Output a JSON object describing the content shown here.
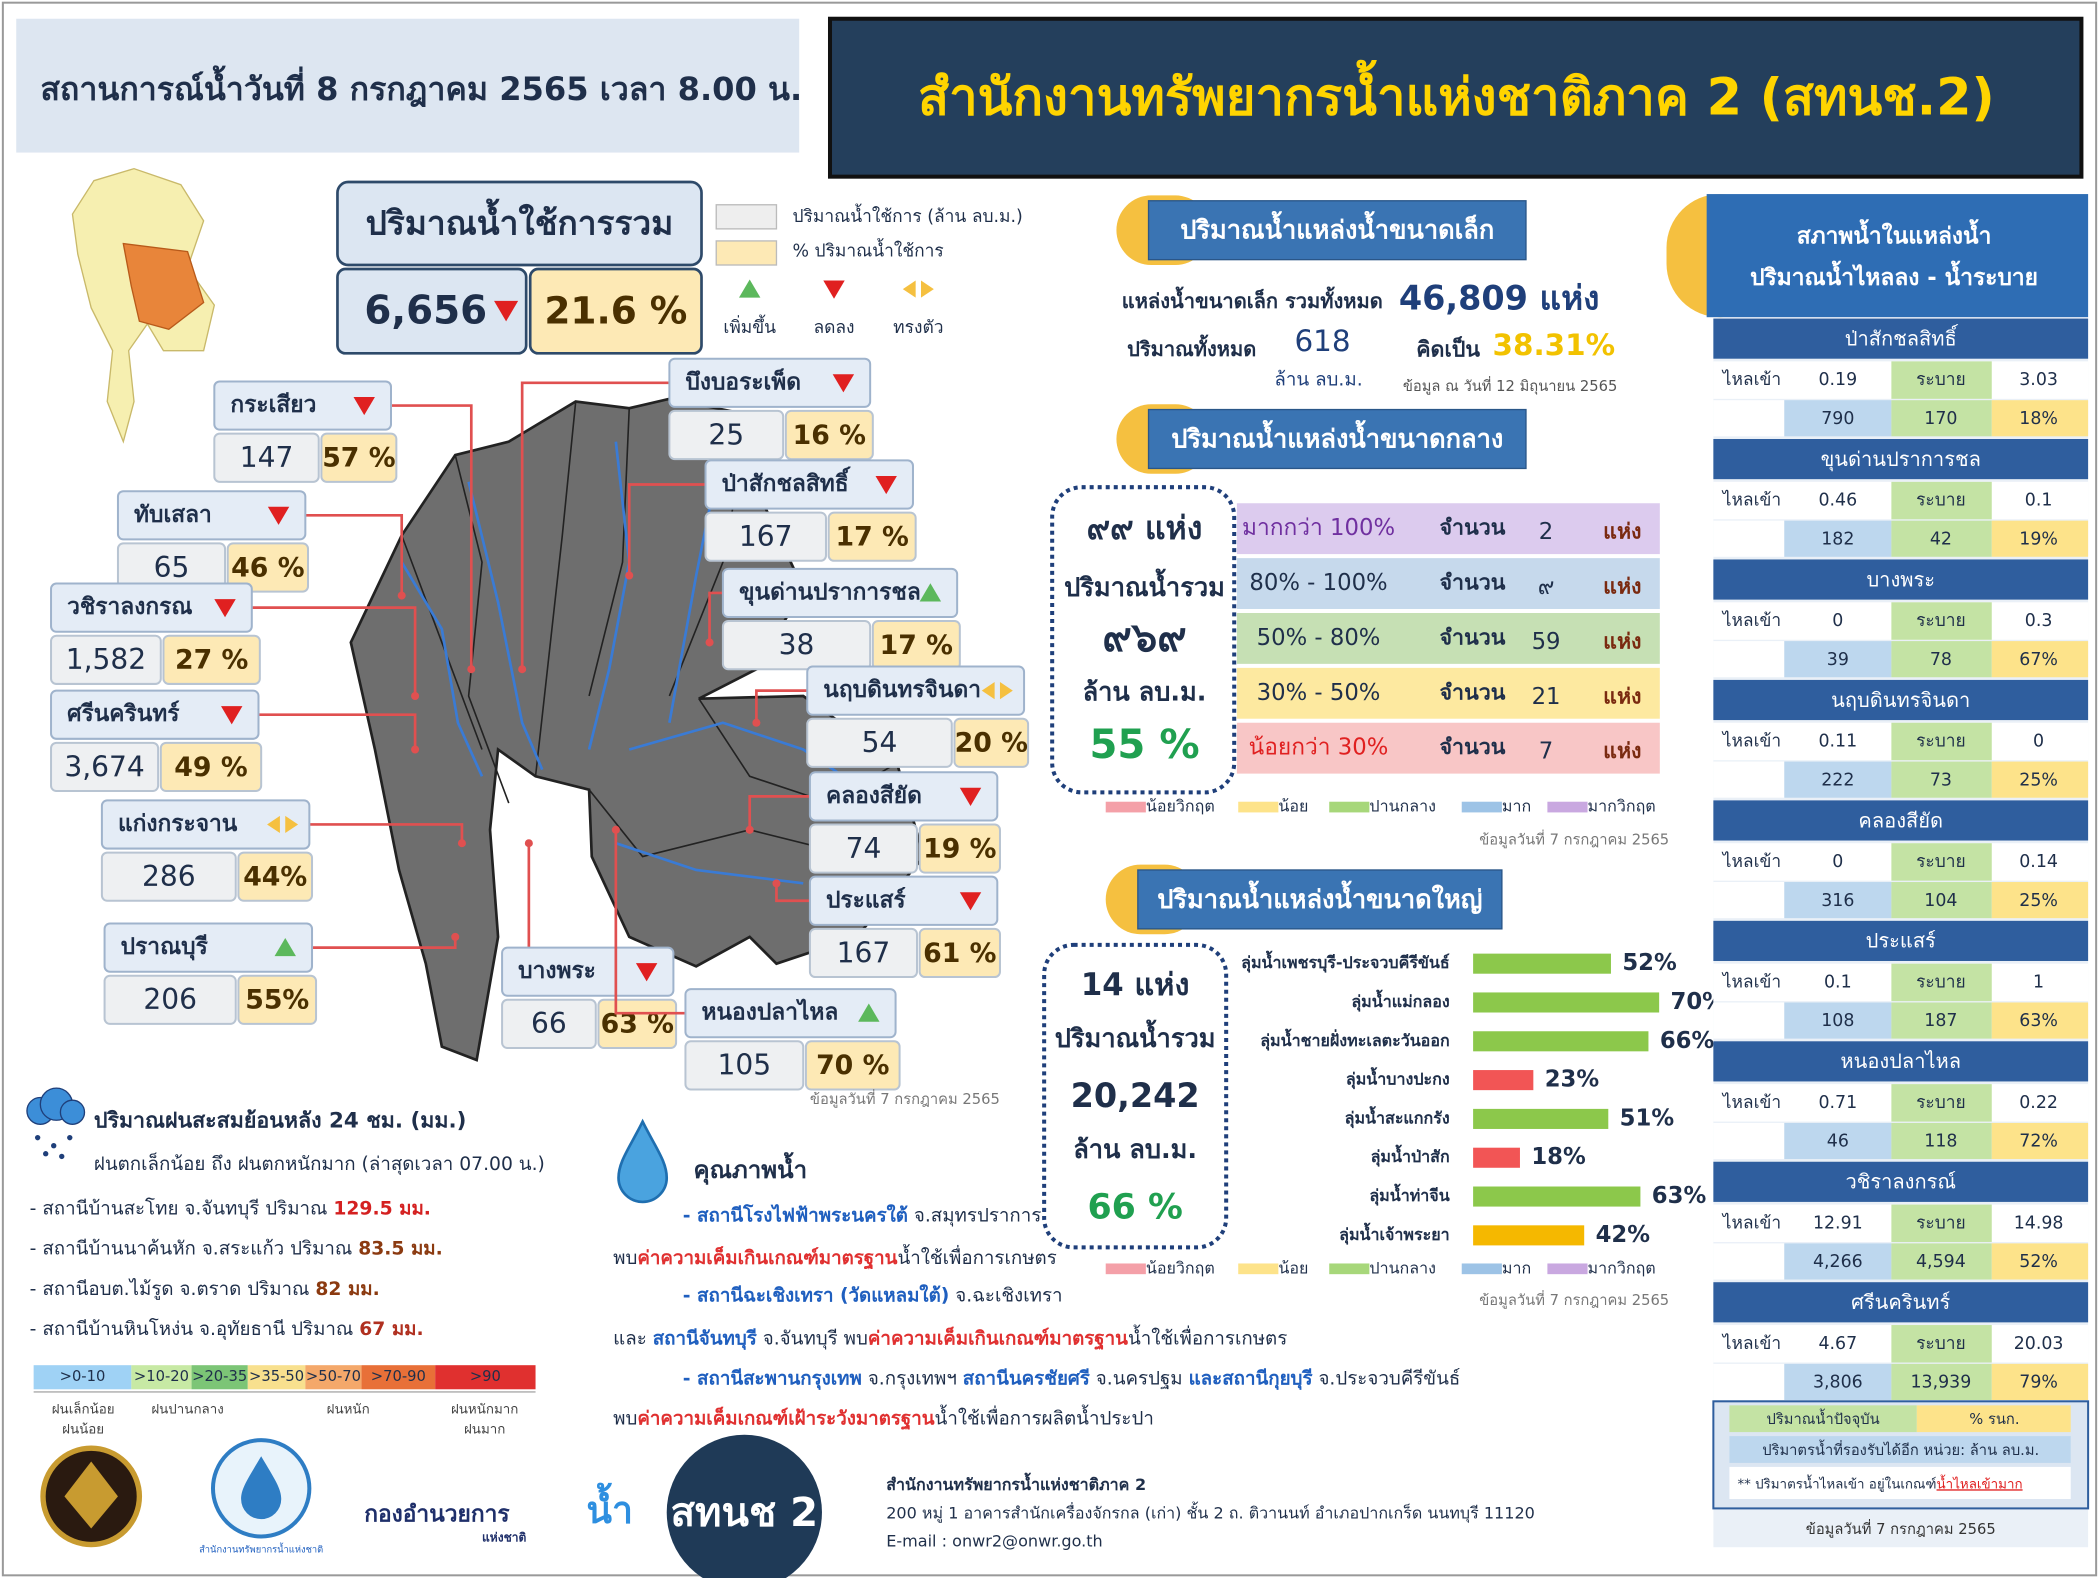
{
  "header": {
    "date_line": "สถานการณ์น้ำวันที่   8 กรกฎาคม 2565 เวลา 8.00 น.",
    "title": "สำนักงานทรัพยากรน้ำแห่งชาติภาค 2 (สทนช.2)"
  },
  "total": {
    "title": "ปริมาณน้ำใช้การรวม",
    "volume": "6,656",
    "percent": "21.6 %",
    "trend": "down"
  },
  "legend": {
    "items": [
      {
        "text": "ปริมาณน้ำใช้การ (ล้าน ลบ.ม.)",
        "color": "#eeeeee"
      },
      {
        "text": "% ปริมาณน้ำใช้การ",
        "color": "#fde9b5"
      }
    ],
    "trends": [
      {
        "text": "เพิ่มขึ้น",
        "trend": "up"
      },
      {
        "text": "ลดลง",
        "trend": "down"
      },
      {
        "text": "ทรงตัว",
        "trend": "steady"
      }
    ]
  },
  "map_reservoirs": [
    {
      "name": "กระเสียว",
      "volume": "147",
      "percent": "57 %",
      "trend": "down"
    },
    {
      "name": "ทับเสลา",
      "volume": "65",
      "percent": "46 %",
      "trend": "down"
    },
    {
      "name": "วชิราลงกรณ",
      "volume": "1,582",
      "percent": "27 %",
      "trend": "down"
    },
    {
      "name": "ศรีนครินทร์",
      "volume": "3,674",
      "percent": "49 %",
      "trend": "down"
    },
    {
      "name": "แก่งกระจาน",
      "volume": "286",
      "percent": "44%",
      "trend": "steady"
    },
    {
      "name": "ปราณบุรี",
      "volume": "206",
      "percent": "55%",
      "trend": "up"
    },
    {
      "name": "บึงบอระเพ็ด",
      "volume": "25",
      "percent": "16 %",
      "trend": "down"
    },
    {
      "name": "ป่าสักชลสิทธิ์",
      "volume": "167",
      "percent": "17 %",
      "trend": "down"
    },
    {
      "name": "ขุนด่านปราการชล",
      "volume": "38",
      "percent": "17 %",
      "trend": "up"
    },
    {
      "name": "นฤบดินทรจินดา",
      "volume": "54",
      "percent": "20 %",
      "trend": "steady"
    },
    {
      "name": "คลองสียัด",
      "volume": "74",
      "percent": "19 %",
      "trend": "down"
    },
    {
      "name": "ประแสร์",
      "volume": "167",
      "percent": "61 %",
      "trend": "down"
    },
    {
      "name": "บางพระ",
      "volume": "66",
      "percent": "63 %",
      "trend": "down"
    },
    {
      "name": "หนองปลาไหล",
      "volume": "105",
      "percent": "70 %",
      "trend": "up"
    }
  ],
  "map_source": "ข้อมูลวันที่ 7 กรกฎาคม 2565",
  "small": {
    "title": "ปริมาณน้ำแหล่งน้ำขนาดเล็ก",
    "total_label": "แหล่งน้ำขนาดเล็ก รวมทั้งหมด",
    "total": "46,809 แห่ง",
    "volume_label": "ปริมาณทั้งหมด",
    "volume": "618",
    "unit": "ล้าน ลบ.ม.",
    "percent_label": "คิดเป็น",
    "percent": "38.31%",
    "source": "ข้อมูล ณ วันที่ 12 มิถุนายน 2565"
  },
  "water_levels": [
    {
      "text": "น้อยวิกฤต",
      "color": "#f4a0a8"
    },
    {
      "text": "น้อย",
      "color": "#fde38a"
    },
    {
      "text": "ปานกลาง",
      "color": "#a7d77a"
    },
    {
      "text": "มาก",
      "color": "#9dc3e6"
    },
    {
      "text": "มากวิกฤต",
      "color": "#c9a8e0"
    }
  ],
  "medium": {
    "title": "ปริมาณน้ำแหล่งน้ำขนาดกลาง",
    "count": "๙๙ แห่ง",
    "volume_label": "ปริมาณน้ำรวม",
    "volume": "๙๖๙",
    "unit": "ล้าน ลบ.ม.",
    "percent": "55 %",
    "count_label": "จำนวน",
    "place_unit": "แห่ง",
    "rows": [
      {
        "range": "มากกว่า 100%",
        "count": "2",
        "color": "#dccbee",
        "text_color": "#7030a0"
      },
      {
        "range": "80% - 100%",
        "count": "๙",
        "color": "#c6d9ec",
        "text_color": "#1f2f4a"
      },
      {
        "range": "50% - 80%",
        "count": "59",
        "color": "#c6e0b4",
        "text_color": "#1f2f4a"
      },
      {
        "range": "30% - 50%",
        "count": "21",
        "color": "#fde9a0",
        "text_color": "#1f2f4a"
      },
      {
        "range": "น้อยกว่า 30%",
        "count": "7",
        "color": "#f8c6c6",
        "text_color": "#e02020"
      }
    ],
    "source": "ข้อมูลวันที่ 7 กรกฎาคม 2565"
  },
  "large": {
    "title": "ปริมาณน้ำแหล่งน้ำขนาดใหญ่",
    "count": "14 แห่ง",
    "volume_label": "ปริมาณน้ำรวม",
    "volume": "20,242",
    "unit": "ล้าน ลบ.ม.",
    "percent": "66 %",
    "basins": [
      {
        "name": "ลุ่มน้ำเพชรบุรี-ประจวบคีรีขันธ์",
        "value": 52,
        "label": "52%",
        "color": "#8cc84b"
      },
      {
        "name": "ลุ่มน้ำแม่กลอง",
        "value": 70,
        "label": "70%",
        "color": "#8cc84b"
      },
      {
        "name": "ลุ่มน้ำชายฝั่งทะเลตะวันออก",
        "value": 66,
        "label": "66%",
        "color": "#8cc84b"
      },
      {
        "name": "ลุ่มน้ำบางปะกง",
        "value": 23,
        "label": "23%",
        "color": "#f25555"
      },
      {
        "name": "ลุ่มน้ำสะแกกรัง",
        "value": 51,
        "label": "51%",
        "color": "#8cc84b"
      },
      {
        "name": "ลุ่มน้ำป่าสัก",
        "value": 18,
        "label": "18%",
        "color": "#f25555"
      },
      {
        "name": "ลุ่มน้ำท่าจีน",
        "value": 63,
        "label": "63%",
        "color": "#8cc84b"
      },
      {
        "name": "ลุ่มน้ำเจ้าพระยา",
        "value": 42,
        "label": "42%",
        "color": "#f5b800"
      }
    ],
    "source": "ข้อมูลวันที่ 7 กรกฎาคม 2565"
  },
  "rain": {
    "title": "ปริมาณฝนสะสมย้อนหลัง 24 ชม. (มม.)",
    "subtitle": "ฝนตกเล็กน้อย  ถึง  ฝนตกหนักมาก (ล่าสุดเวลา  07.00 น.)",
    "stations": [
      {
        "text": "-  สถานีบ้านสะโทย  จ.จันทบุรี ปริมาณ ",
        "amount": "129.5 มม.",
        "color": "#d42020"
      },
      {
        "text": "-  สถานีบ้านนาค้นหัก  จ.สระแก้ว ปริมาณ ",
        "amount": "83.5 มม.",
        "color": "#8b3a10"
      },
      {
        "text": "-  สถานีอบต.ไม้รูด  จ.ตราด ปริมาณ  ",
        "amount": "82 มม.",
        "color": "#8b3a10"
      },
      {
        "text": "-  สถานีบ้านหินโหง่น  จ.อุทัยธานี ปริมาณ ",
        "amount": "67 มม.",
        "color": "#b03020"
      }
    ],
    "scale": [
      {
        "text": ">0-10",
        "color": "#9fd2f5"
      },
      {
        "text": ">10-20",
        "color": "#c7e9a4"
      },
      {
        "text": ">20-35",
        "color": "#7cc576"
      },
      {
        "text": ">35-50",
        "color": "#f8e08e"
      },
      {
        "text": ">50-70",
        "color": "#f4a86a"
      },
      {
        "text": ">70-90",
        "color": "#e87038"
      },
      {
        "text": ">90",
        "color": "#e0302f"
      }
    ],
    "scale_labels": [
      [
        "ฝนเล็กน้อย",
        "ฝนน้อย"
      ],
      [
        "ฝนปานกลาง"
      ],
      [
        "ฝนหนัก"
      ],
      [
        "ฝนหนักมาก",
        "ฝนมาก"
      ]
    ]
  },
  "quality": {
    "title": "คุณภาพน้ำ",
    "lines": [
      [
        {
          "text": "-  สถานีโรงไฟฟ้าพระนครใต้",
          "style": "station"
        },
        {
          "text": " จ.สมุทรปราการ",
          "style": "normal"
        }
      ],
      [
        {
          "text": "พบ",
          "style": "normal"
        },
        {
          "text": "ค่าความเค็มเกินเกณฑ์มาตรฐาน",
          "style": "alert"
        },
        {
          "text": "น้ำใช้เพื่อการเกษตร",
          "style": "normal"
        }
      ],
      [
        {
          "text": "-  สถานีฉะเชิงเทรา (วัดแหลมใต้)",
          "style": "station"
        },
        {
          "text": " จ.ฉะเชิงเทรา",
          "style": "normal"
        }
      ],
      [
        {
          "text": "และ ",
          "style": "normal"
        },
        {
          "text": "สถานีจันทบุรี",
          "style": "station"
        },
        {
          "text": " จ.จันทบุรี พบ",
          "style": "normal"
        },
        {
          "text": "ค่าความเค็มเกินเกณฑ์มาตรฐาน",
          "style": "alert"
        },
        {
          "text": "น้ำใช้เพื่อการเกษตร",
          "style": "normal"
        }
      ],
      [
        {
          "text": "-  สถานีสะพานกรุงเทพ",
          "style": "station"
        },
        {
          "text": "  จ.กรุงเทพฯ  ",
          "style": "normal"
        },
        {
          "text": "สถานีนครชัยศรี",
          "style": "station"
        },
        {
          "text": "  จ.นครปฐม ",
          "style": "normal"
        },
        {
          "text": "และสถานีกุยบุรี",
          "style": "station"
        },
        {
          "text": "  จ.ประจวบคีรีขันธ์",
          "style": "normal"
        }
      ],
      [
        {
          "text": "พบ",
          "style": "normal"
        },
        {
          "text": "ค่าความเค็มเกณฑ์เฝ้าระวังมาตรฐาน",
          "style": "alert"
        },
        {
          "text": "น้ำใช้เพื่อการผลิตน้ำประปา",
          "style": "normal"
        }
      ]
    ]
  },
  "footer": {
    "onwr_logo_text": "สำนักงานทรัพยากรน้ำแห่งชาติ",
    "command_center": "กองอำนวยการ",
    "national": "แห่งชาติ",
    "water": "น้ำ",
    "badge": "สทนช 2",
    "address": [
      "สำนักงานทรัพยากรน้ำแห่งชาติภาค 2",
      "200  หมู่ 1 อาคารสำนักเครื่องจักรกล (เก่า) ชั้น 2 ถ. ติวานนท์ อำเภอปากเกร็ด นนทบุรี 11120",
      "E-mail : onwr2@onwr.go.th"
    ]
  },
  "right_panel": {
    "title": [
      "สภาพน้ำในแหล่งน้ำ",
      "ปริมาณน้ำไหลลง - น้ำระบาย"
    ],
    "inflow_label": "ไหลเข้า",
    "outflow_label": "ระบาย",
    "reservoirs": [
      {
        "name": "ป่าสักชลสิทธิ์",
        "inflow": "0.19",
        "outflow": "3.03",
        "volume": "790",
        "capacity": "170",
        "percent": "18%"
      },
      {
        "name": "ขุนด่านปราการชล",
        "inflow": "0.46",
        "outflow": "0.1",
        "volume": "182",
        "capacity": "42",
        "percent": "19%"
      },
      {
        "name": "บางพระ",
        "inflow": "0",
        "outflow": "0.3",
        "volume": "39",
        "capacity": "78",
        "percent": "67%"
      },
      {
        "name": "นฤบดินทรจินดา",
        "inflow": "0.11",
        "outflow": "0",
        "volume": "222",
        "capacity": "73",
        "percent": "25%"
      },
      {
        "name": "คลองสียัด",
        "inflow": "0",
        "outflow": "0.14",
        "volume": "316",
        "capacity": "104",
        "percent": "25%"
      },
      {
        "name": "ประแสร์",
        "inflow": "0.1",
        "outflow": "1",
        "volume": "108",
        "capacity": "187",
        "percent": "63%"
      },
      {
        "name": "หนองปลาไหล",
        "inflow": "0.71",
        "outflow": "0.22",
        "volume": "46",
        "capacity": "118",
        "percent": "72%"
      },
      {
        "name": "วชิราลงกรณ์",
        "inflow": "12.91",
        "outflow": "14.98",
        "volume": "4,266",
        "capacity": "4,594",
        "percent": "52%"
      },
      {
        "name": "ศรีนครินทร์",
        "inflow": "4.67",
        "outflow": "20.03",
        "volume": "3,806",
        "capacity": "13,939",
        "percent": "79%"
      }
    ],
    "legend": {
      "volume": "ปริมาณน้ำปัจจุบัน",
      "percent": "% รนก.",
      "capacity": "ปริมาตรน้ำที่รองรับได้อีก  หน่วย: ล้าน ลบ.ม.",
      "note": "** ปริมาตรน้ำไหลเข้า อยู่ในเกณฑ์",
      "note_alert": "น้ำไหลเข้ามาก"
    },
    "source": "ข้อมูลวันที่ 7 กรกฎาคม 2565"
  }
}
